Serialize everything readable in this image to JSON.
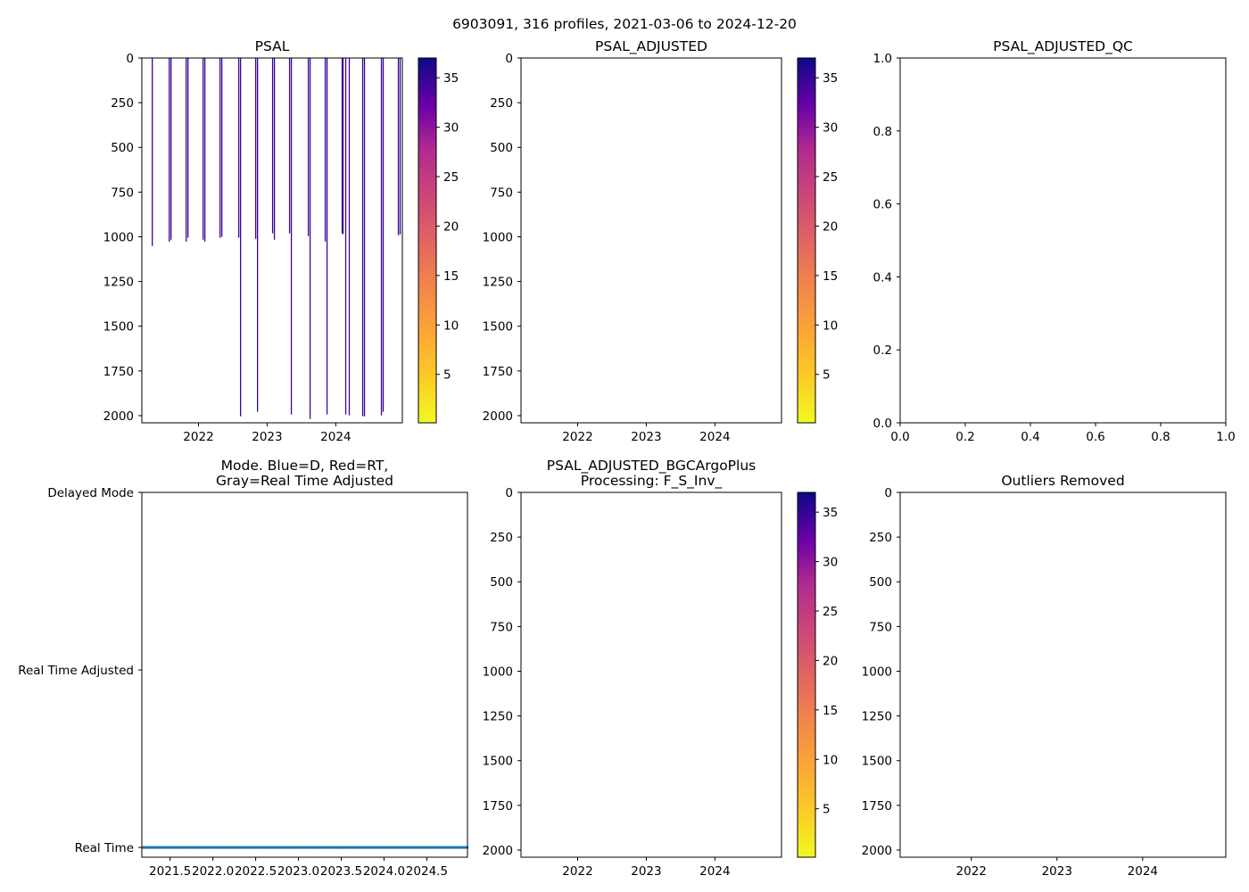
{
  "suptitle": "6903091, 316 profiles, 2021-03-06 to 2024-12-20",
  "colors": {
    "profile_line": "#3b049a",
    "mode_realtime": "#1f77b4",
    "axes": "#000000"
  },
  "chart_data": [
    {
      "type": "line",
      "title": [
        "PSAL"
      ],
      "xlim": [
        2021.175,
        2024.97
      ],
      "ylim": [
        2040,
        0
      ],
      "xticks": [
        2022,
        2023,
        2024
      ],
      "xticklabels": [
        "2022",
        "2023",
        "2024"
      ],
      "yticks": [
        0,
        250,
        500,
        750,
        1000,
        1250,
        1500,
        1750,
        2000
      ],
      "yticklabels": [
        "0",
        "250",
        "500",
        "750",
        "1000",
        "1250",
        "1500",
        "1750",
        "2000"
      ],
      "colorbar": {
        "cmap": "plasma_r",
        "range": [
          0.1,
          37
        ],
        "ticks": [
          5,
          10,
          15,
          20,
          25,
          30,
          35
        ],
        "ticklabels": [
          "5",
          "10",
          "15",
          "20",
          "25",
          "30",
          "35"
        ]
      },
      "profiles": {
        "x": [
          2021.327,
          2021.574,
          2021.6,
          2021.821,
          2021.847,
          2022.067,
          2022.093,
          2022.314,
          2022.34,
          2022.587,
          2022.613,
          2022.834,
          2022.86,
          2023.08,
          2023.106,
          2023.327,
          2023.353,
          2023.6,
          2023.626,
          2023.847,
          2023.873,
          2024.093,
          2024.106,
          2024.145,
          2024.197,
          2024.392,
          2024.418,
          2024.665,
          2024.691,
          2024.912,
          2024.938
        ],
        "max_pressure": [
          1051,
          1027,
          1016,
          1027,
          1005,
          1016,
          1027,
          1005,
          1000,
          1005,
          2003,
          1011,
          1978,
          981,
          1016,
          981,
          1993,
          996,
          2018,
          1027,
          1993,
          981,
          986,
          1993,
          1998,
          2003,
          2003,
          1998,
          1978,
          991,
          986
        ],
        "value_approx": 35
      }
    },
    {
      "type": "line",
      "title": [
        "PSAL_ADJUSTED"
      ],
      "xlim": [
        2021.175,
        2024.97
      ],
      "ylim": [
        2040,
        0
      ],
      "xticks": [
        2022,
        2023,
        2024
      ],
      "xticklabels": [
        "2022",
        "2023",
        "2024"
      ],
      "yticks": [
        0,
        250,
        500,
        750,
        1000,
        1250,
        1500,
        1750,
        2000
      ],
      "yticklabels": [
        "0",
        "250",
        "500",
        "750",
        "1000",
        "1250",
        "1500",
        "1750",
        "2000"
      ],
      "colorbar": {
        "cmap": "plasma_r",
        "range": [
          0.1,
          37
        ],
        "ticks": [
          5,
          10,
          15,
          20,
          25,
          30,
          35
        ],
        "ticklabels": [
          "5",
          "10",
          "15",
          "20",
          "25",
          "30",
          "35"
        ]
      }
    },
    {
      "type": "line",
      "title": [
        "PSAL_ADJUSTED_QC"
      ],
      "xlim": [
        0,
        1
      ],
      "ylim": [
        0,
        1
      ],
      "xticks": [
        0,
        0.2,
        0.4,
        0.6,
        0.8,
        1.0
      ],
      "xticklabels": [
        "0.0",
        "0.2",
        "0.4",
        "0.6",
        "0.8",
        "1.0"
      ],
      "yticks": [
        0,
        0.2,
        0.4,
        0.6,
        0.8,
        1.0
      ],
      "yticklabels": [
        "0.0",
        "0.2",
        "0.4",
        "0.6",
        "0.8",
        "1.0"
      ]
    },
    {
      "type": "scatter",
      "title": [
        "Mode. Blue=D, Red=RT,",
        "Gray=Real Time Adjusted"
      ],
      "xlim": [
        2021.17,
        2024.975
      ],
      "ylim": [
        -0.055,
        2
      ],
      "xticks": [
        2021.5,
        2022.0,
        2022.5,
        2023.0,
        2023.5,
        2024.0,
        2024.5
      ],
      "xticklabels": [
        "2021.5",
        "2022.0",
        "2022.5",
        "2023.0",
        "2023.5",
        "2024.0",
        "2024.5"
      ],
      "yticks": [
        0,
        1,
        2
      ],
      "yticklabels": [
        "Real Time",
        "Real Time Adjusted",
        "Delayed Mode"
      ],
      "mode_points": {
        "mode_value": 0,
        "count": 316,
        "x_start": 2021.18,
        "x_end": 2024.97
      }
    },
    {
      "type": "line",
      "title": [
        "PSAL_ADJUSTED_BGCArgoPlus",
        "Processing: F_S_Inv_"
      ],
      "xlim": [
        2021.175,
        2024.97
      ],
      "ylim": [
        2040,
        0
      ],
      "xticks": [
        2022,
        2023,
        2024
      ],
      "xticklabels": [
        "2022",
        "2023",
        "2024"
      ],
      "yticks": [
        0,
        250,
        500,
        750,
        1000,
        1250,
        1500,
        1750,
        2000
      ],
      "yticklabels": [
        "0",
        "250",
        "500",
        "750",
        "1000",
        "1250",
        "1500",
        "1750",
        "2000"
      ],
      "colorbar": {
        "cmap": "plasma_r",
        "range": [
          0.1,
          37
        ],
        "ticks": [
          5,
          10,
          15,
          20,
          25,
          30,
          35
        ],
        "ticklabels": [
          "5",
          "10",
          "15",
          "20",
          "25",
          "30",
          "35"
        ]
      }
    },
    {
      "type": "line",
      "title": [
        "Outliers Removed"
      ],
      "xlim": [
        2021.17,
        2024.97
      ],
      "ylim": [
        2040,
        0
      ],
      "xticks": [
        2022,
        2023,
        2024
      ],
      "xticklabels": [
        "2022",
        "2023",
        "2024"
      ],
      "yticks": [
        0,
        250,
        500,
        750,
        1000,
        1250,
        1500,
        1750,
        2000
      ],
      "yticklabels": [
        "0",
        "250",
        "500",
        "750",
        "1000",
        "1250",
        "1500",
        "1750",
        "2000"
      ]
    }
  ]
}
